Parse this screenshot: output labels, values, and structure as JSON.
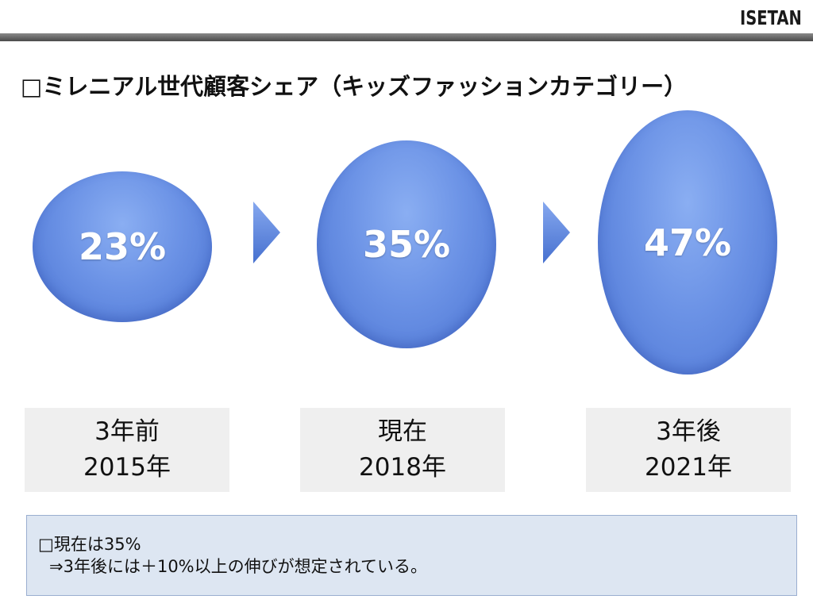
{
  "header": {
    "logo_text": "ISETAN"
  },
  "title": "□ミレニアル世代顧客シェア（キッズファッションカテゴリー）",
  "share": [
    {
      "value": "23%",
      "period": "3年前",
      "year": "2015年"
    },
    {
      "value": "35%",
      "period": "現在",
      "year": "2018年"
    },
    {
      "value": "47%",
      "period": "3年後",
      "year": "2021年"
    }
  ],
  "note": {
    "line1": "□現在は35%",
    "line2": "⇒3年後には＋10%以上の伸びが想定されている。"
  },
  "colors": {
    "bubble": "#6c93e6",
    "arrow": "#5b83dd",
    "note_bg": "#dde6f2",
    "label_bg": "#efefef"
  }
}
